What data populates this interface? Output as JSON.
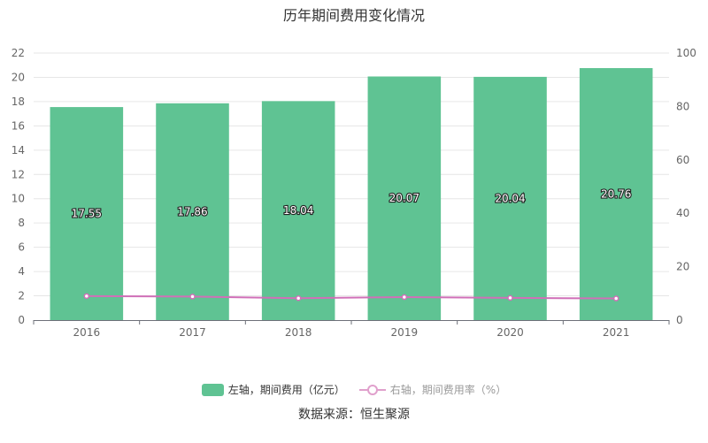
{
  "chart_data": {
    "type": "bar",
    "title": "历年期间费用变化情况",
    "categories": [
      "2016",
      "2017",
      "2018",
      "2019",
      "2020",
      "2021"
    ],
    "series": [
      {
        "name": "左轴，期间费用（亿元）",
        "type": "bar",
        "axis": "left",
        "color": "#5fc393",
        "values": [
          17.55,
          17.86,
          18.04,
          20.07,
          20.04,
          20.76
        ]
      },
      {
        "name": "右轴，期间费用率（%）",
        "type": "line",
        "axis": "right",
        "color": "#d070b8",
        "values": [
          9.0,
          8.8,
          8.2,
          8.6,
          8.3,
          8.1
        ]
      }
    ],
    "left_axis": {
      "ylim": [
        0,
        22
      ],
      "ticks": [
        0,
        2,
        4,
        6,
        8,
        10,
        12,
        14,
        16,
        18,
        20,
        22
      ]
    },
    "right_axis": {
      "ylim": [
        0,
        100
      ],
      "ticks": [
        0,
        20,
        40,
        60,
        80,
        100
      ]
    },
    "grid": true,
    "legend": "bottom"
  },
  "source": "数据来源：恒生聚源"
}
